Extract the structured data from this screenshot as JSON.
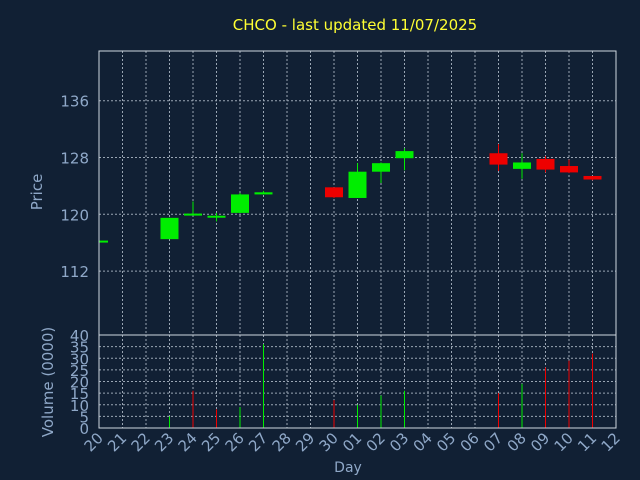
{
  "colors": {
    "background": "#112034",
    "title": "#ffff33",
    "axis_text": "#8fa8c8",
    "frame": "#d0d8e0",
    "grid": "#9aa6b4",
    "up": "#00ee00",
    "down": "#ee0000"
  },
  "chart_data": [
    {
      "type": "candlestick",
      "title": "CHCO - last updated 11/07/2025",
      "ylabel": "Price",
      "ylim": [
        103,
        143
      ],
      "yticks": [
        112,
        120,
        128,
        136
      ],
      "categories": [
        "20",
        "21",
        "22",
        "23",
        "24",
        "25",
        "26",
        "27",
        "28",
        "29",
        "30",
        "01",
        "02",
        "03",
        "04",
        "05",
        "06",
        "07",
        "08",
        "09",
        "10",
        "11",
        "12"
      ],
      "candles": [
        {
          "i": 0,
          "open": 116.3,
          "high": 116.3,
          "low": 116.3,
          "close": 116.3
        },
        {
          "i": 3,
          "open": 116.5,
          "high": 119.5,
          "low": 116.5,
          "close": 119.5
        },
        {
          "i": 4,
          "open": 120.0,
          "high": 121.8,
          "low": 120.0,
          "close": 120.1
        },
        {
          "i": 5,
          "open": 119.8,
          "high": 120.2,
          "low": 119.0,
          "close": 119.8
        },
        {
          "i": 6,
          "open": 120.2,
          "high": 123.0,
          "low": 120.2,
          "close": 122.8
        },
        {
          "i": 7,
          "open": 122.8,
          "high": 123.3,
          "low": 122.8,
          "close": 123.1
        },
        {
          "i": 10,
          "open": 123.8,
          "high": 123.8,
          "low": 122.3,
          "close": 122.4
        },
        {
          "i": 11,
          "open": 122.3,
          "high": 127.2,
          "low": 122.3,
          "close": 126.0
        },
        {
          "i": 12,
          "open": 126.0,
          "high": 127.3,
          "low": 124.4,
          "close": 127.2
        },
        {
          "i": 13,
          "open": 127.9,
          "high": 129.3,
          "low": 126.2,
          "close": 128.9
        },
        {
          "i": 17,
          "open": 128.6,
          "high": 129.9,
          "low": 126.1,
          "close": 127.0
        },
        {
          "i": 18,
          "open": 126.4,
          "high": 128.6,
          "low": 125.0,
          "close": 127.3
        },
        {
          "i": 19,
          "open": 127.8,
          "high": 128.2,
          "low": 125.9,
          "close": 126.3
        },
        {
          "i": 20,
          "open": 126.8,
          "high": 127.7,
          "low": 125.8,
          "close": 125.9
        },
        {
          "i": 21,
          "open": 125.4,
          "high": 125.4,
          "low": 124.8,
          "close": 124.9
        }
      ]
    },
    {
      "type": "bar",
      "ylabel": "Volume (0000)",
      "xlabel": "Day",
      "ylim": [
        0,
        40
      ],
      "yticks": [
        0,
        5,
        10,
        15,
        20,
        25,
        30,
        35,
        40
      ],
      "categories": [
        "20",
        "21",
        "22",
        "23",
        "24",
        "25",
        "26",
        "27",
        "28",
        "29",
        "30",
        "01",
        "02",
        "03",
        "04",
        "05",
        "06",
        "07",
        "08",
        "09",
        "10",
        "11",
        "12"
      ],
      "bars": [
        {
          "i": 3,
          "value": 5,
          "dir": "up"
        },
        {
          "i": 4,
          "value": 16,
          "dir": "down"
        },
        {
          "i": 5,
          "value": 8,
          "dir": "down"
        },
        {
          "i": 6,
          "value": 9,
          "dir": "up"
        },
        {
          "i": 7,
          "value": 36,
          "dir": "up"
        },
        {
          "i": 10,
          "value": 12,
          "dir": "down"
        },
        {
          "i": 11,
          "value": 10,
          "dir": "up"
        },
        {
          "i": 12,
          "value": 14,
          "dir": "up"
        },
        {
          "i": 13,
          "value": 16,
          "dir": "up"
        },
        {
          "i": 17,
          "value": 15,
          "dir": "down"
        },
        {
          "i": 18,
          "value": 19,
          "dir": "up"
        },
        {
          "i": 19,
          "value": 26,
          "dir": "down"
        },
        {
          "i": 20,
          "value": 29,
          "dir": "down"
        },
        {
          "i": 21,
          "value": 32,
          "dir": "down"
        }
      ]
    }
  ]
}
